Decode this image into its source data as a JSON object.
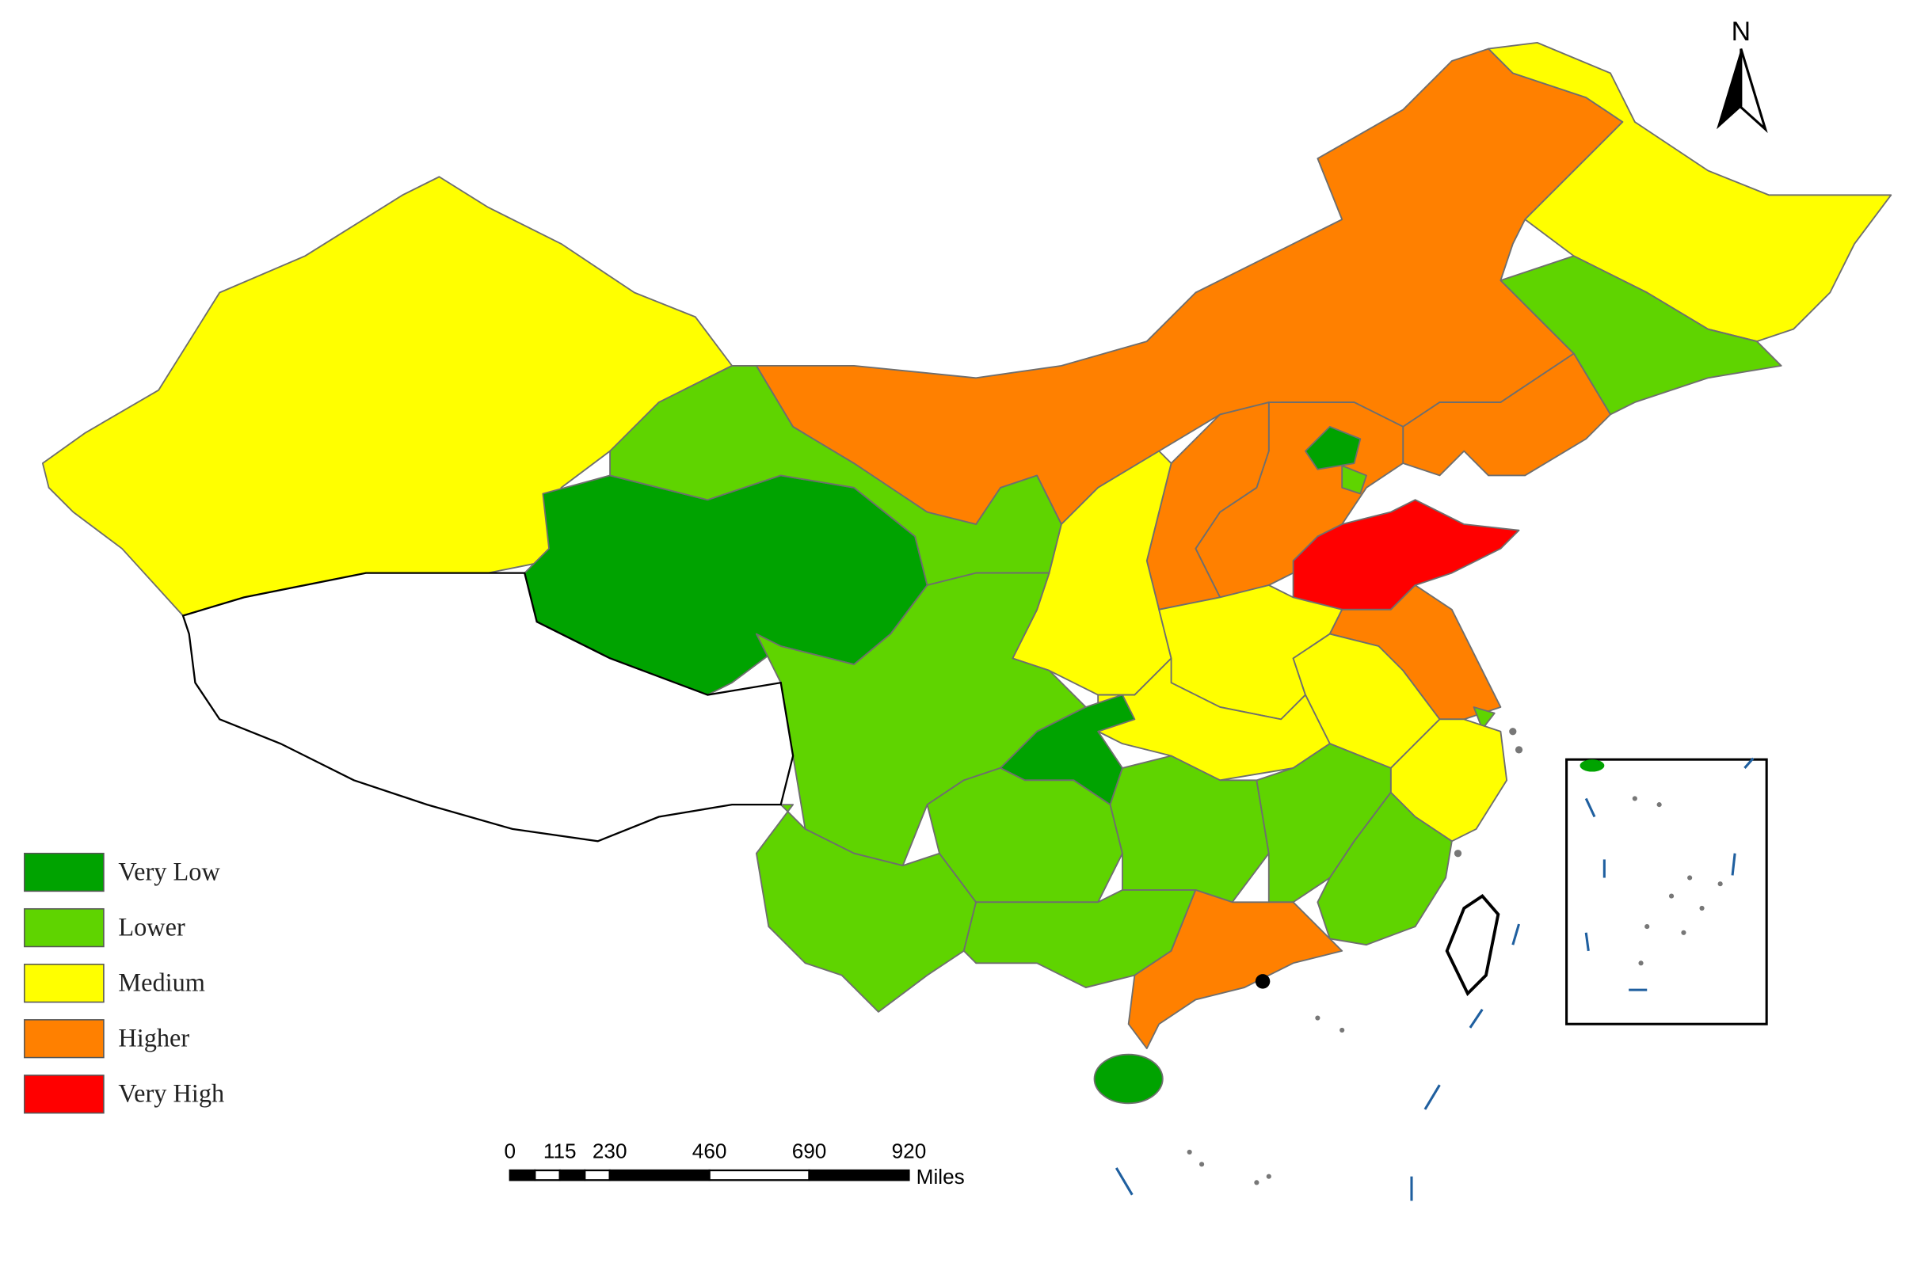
{
  "north_label": "N",
  "legend": [
    {
      "label": "Very Low",
      "color": "#00a300"
    },
    {
      "label": "Lower",
      "color": "#5fd400"
    },
    {
      "label": "Medium",
      "color": "#ffff00"
    },
    {
      "label": "Higher",
      "color": "#ff8000"
    },
    {
      "label": "Very High",
      "color": "#ff0000"
    }
  ],
  "scale_bar": {
    "labels": [
      0,
      115,
      230,
      460,
      690,
      920
    ],
    "unit": "Miles"
  }
}
